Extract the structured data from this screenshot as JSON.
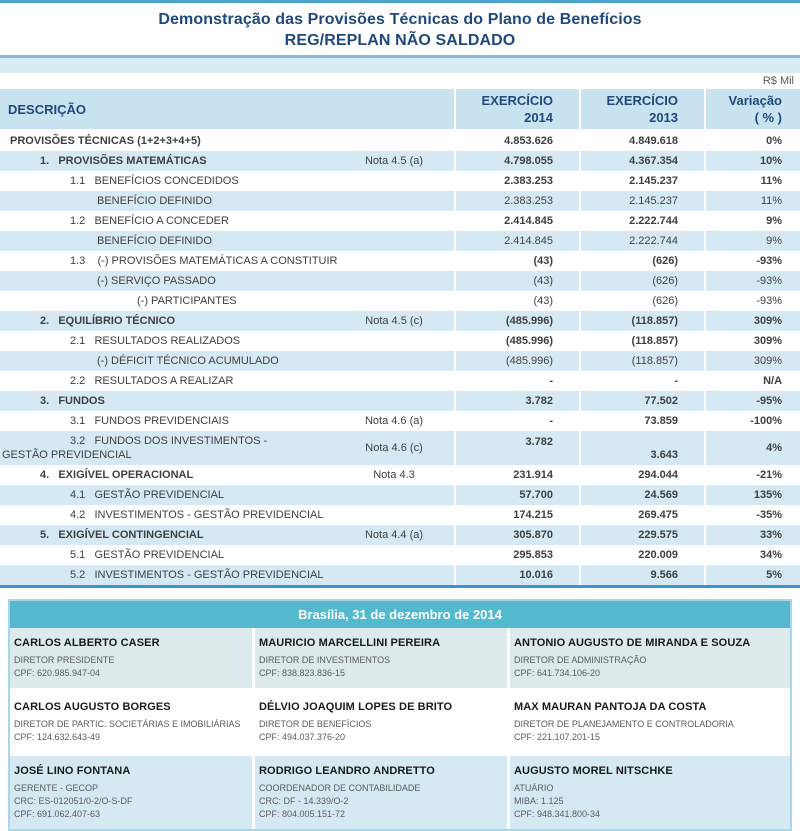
{
  "title": {
    "line1": "Demonstração das Provisões Técnicas do Plano de Benefícios",
    "line2": "REG/REPLAN NÃO SALDADO"
  },
  "meta": {
    "unit": "R$ Mil"
  },
  "table": {
    "headers": {
      "desc": "DESCRIÇÃO",
      "y2014": "EXERCÍCIO\n2014",
      "y2013": "EXERCÍCIO\n2013",
      "variacao": "Variação\n( % )"
    },
    "rows": [
      {
        "label": "PROVISÕES TÉCNICAS (1+2+3+4+5)",
        "indent": 0,
        "nota": "",
        "v2014": "4.853.626",
        "v2013": "4.849.618",
        "variacao": "0%",
        "bold_label": true,
        "bold_values": true,
        "wrap": false
      },
      {
        "label": "1.   PROVISÕES MATEMÁTICAS",
        "indent": 1,
        "nota": "Nota 4.5 (a)",
        "v2014": "4.798.055",
        "v2013": "4.367.354",
        "variacao": "10%",
        "bold_label": true,
        "bold_values": true,
        "wrap": false
      },
      {
        "label": "1.1   BENEFÍCIOS CONCEDIDOS",
        "indent": 2,
        "nota": "",
        "v2014": "2.383.253",
        "v2013": "2.145.237",
        "variacao": "11%",
        "bold_label": false,
        "bold_values": true,
        "wrap": false
      },
      {
        "label": "BENEFÍCIO DEFINIDO",
        "indent": 3,
        "nota": "",
        "v2014": "2.383.253",
        "v2013": "2.145.237",
        "variacao": "11%",
        "bold_label": false,
        "bold_values": false,
        "wrap": false
      },
      {
        "label": "1.2   BENEFÍCIO A CONCEDER",
        "indent": 2,
        "nota": "",
        "v2014": "2.414.845",
        "v2013": "2.222.744",
        "variacao": "9%",
        "bold_label": false,
        "bold_values": true,
        "wrap": false
      },
      {
        "label": "BENEFÍCIO DEFINIDO",
        "indent": 3,
        "nota": "",
        "v2014": "2.414.845",
        "v2013": "2.222.744",
        "variacao": "9%",
        "bold_label": false,
        "bold_values": false,
        "wrap": false
      },
      {
        "label": "1.3    (-) PROVISÕES MATEMÁTICAS A CONSTITUIR",
        "indent": 2,
        "nota": "",
        "v2014": "(43)",
        "v2013": "(626)",
        "variacao": "-93%",
        "bold_label": false,
        "bold_values": true,
        "wrap": false
      },
      {
        "label": "(-) SERVIÇO PASSADO",
        "indent": 3,
        "nota": "",
        "v2014": "(43)",
        "v2013": "(626)",
        "variacao": "-93%",
        "bold_label": false,
        "bold_values": false,
        "wrap": false
      },
      {
        "label": "(-) PARTICIPANTES",
        "indent": 4,
        "nota": "",
        "v2014": "(43)",
        "v2013": "(626)",
        "variacao": "-93%",
        "bold_label": false,
        "bold_values": false,
        "wrap": false
      },
      {
        "label": "2.   EQUILÍBRIO TÉCNICO",
        "indent": 1,
        "nota": "Nota 4.5 (c)",
        "v2014": "(485.996)",
        "v2013": "(118.857)",
        "variacao": "309%",
        "bold_label": true,
        "bold_values": true,
        "wrap": false
      },
      {
        "label": "2.1   RESULTADOS REALIZADOS",
        "indent": 2,
        "nota": "",
        "v2014": "(485.996)",
        "v2013": "(118.857)",
        "variacao": "309%",
        "bold_label": false,
        "bold_values": true,
        "wrap": false
      },
      {
        "label": "(-) DÉFICIT TÉCNICO ACUMULADO",
        "indent": 3,
        "nota": "",
        "v2014": "(485.996)",
        "v2013": "(118.857)",
        "variacao": "309%",
        "bold_label": false,
        "bold_values": false,
        "wrap": false
      },
      {
        "label": "2.2   RESULTADOS A REALIZAR",
        "indent": 2,
        "nota": "",
        "v2014": "-",
        "v2013": "-",
        "variacao": "N/A",
        "bold_label": false,
        "bold_values": true,
        "wrap": false
      },
      {
        "label": "3.   FUNDOS",
        "indent": 1,
        "nota": "",
        "v2014": "3.782",
        "v2013": "77.502",
        "variacao": "-95%",
        "bold_label": true,
        "bold_values": true,
        "wrap": false
      },
      {
        "label": "3.1   FUNDOS PREVIDENCIAIS",
        "indent": 2,
        "nota": "Nota 4.6 (a)",
        "v2014": "-",
        "v2013": "73.859",
        "variacao": "-100%",
        "bold_label": false,
        "bold_values": true,
        "wrap": false
      },
      {
        "label": "3.2   FUNDOS DOS INVESTIMENTOS -\nGESTÃO PREVIDENCIAL",
        "indent": 2,
        "nota": "Nota 4.6 (c)",
        "v2014": "3.782",
        "v2013": "3.643",
        "variacao": "4%",
        "bold_label": false,
        "bold_values": true,
        "wrap": true
      },
      {
        "label": "4.   EXIGÍVEL OPERACIONAL",
        "indent": 1,
        "nota": "Nota 4.3",
        "v2014": "231.914",
        "v2013": "294.044",
        "variacao": "-21%",
        "bold_label": true,
        "bold_values": true,
        "wrap": false
      },
      {
        "label": "4.1   GESTÃO PREVIDENCIAL",
        "indent": 2,
        "nota": "",
        "v2014": "57.700",
        "v2013": "24.569",
        "variacao": "135%",
        "bold_label": false,
        "bold_values": true,
        "wrap": false
      },
      {
        "label": "4.2   INVESTIMENTOS - GESTÃO PREVIDENCIAL",
        "indent": 2,
        "nota": "",
        "v2014": "174.215",
        "v2013": "269.475",
        "variacao": "-35%",
        "bold_label": false,
        "bold_values": true,
        "wrap": false
      },
      {
        "label": "5.   EXIGÍVEL CONTINGENCIAL",
        "indent": 1,
        "nota": "Nota 4.4 (a)",
        "v2014": "305.870",
        "v2013": "229.575",
        "variacao": "33%",
        "bold_label": true,
        "bold_values": true,
        "wrap": false
      },
      {
        "label": "5.1   GESTÃO PREVIDENCIAL",
        "indent": 2,
        "nota": "",
        "v2014": "295.853",
        "v2013": "220.009",
        "variacao": "34%",
        "bold_label": false,
        "bold_values": true,
        "wrap": false
      },
      {
        "label": "5.2   INVESTIMENTOS - GESTÃO PREVIDENCIAL",
        "indent": 2,
        "nota": "",
        "v2014": "10.016",
        "v2013": "9.566",
        "variacao": "5%",
        "bold_label": false,
        "bold_values": true,
        "wrap": false
      }
    ]
  },
  "footer": {
    "date_bar": "Brasília, 31 de dezembro de 2014",
    "rows": [
      [
        {
          "name": "CARLOS ALBERTO CASER",
          "lines": [
            "DIRETOR PRESIDENTE",
            "CPF: 620.985.947-04"
          ]
        },
        {
          "name": "MAURICIO MARCELLINI PEREIRA",
          "lines": [
            "DIRETOR DE INVESTIMENTOS",
            "CPF: 838.823.836-15"
          ]
        },
        {
          "name": "ANTONIO AUGUSTO DE MIRANDA E SOUZA",
          "lines": [
            "DIRETOR DE ADMINISTRAÇÃO",
            "CPF: 641.734.106-20"
          ]
        }
      ],
      [
        {
          "name": "CARLOS AUGUSTO BORGES",
          "lines": [
            "DIRETOR DE PARTIC. SOCIETÁRIAS E IMOBILIÁRIAS",
            "CPF: 124.632.643-49"
          ]
        },
        {
          "name": "DÉLVIO JOAQUIM LOPES DE BRITO",
          "lines": [
            "DIRETOR DE BENEFÍCIOS",
            "CPF: 494.037.376-20"
          ]
        },
        {
          "name": "MAX MAURAN PANTOJA DA COSTA",
          "lines": [
            "DIRETOR DE PLANEJAMENTO E CONTROLADORIA",
            "CPF: 221.107.201-15"
          ]
        }
      ],
      [
        {
          "name": "JOSÉ LINO FONTANA",
          "lines": [
            "GERENTE -  GECOP",
            "CRC: ES-012051/0-2/O-S-DF",
            "CPF: 691.062.407-63"
          ]
        },
        {
          "name": "RODRIGO LEANDRO ANDRETTO",
          "lines": [
            "COORDENADOR DE CONTABILIDADE",
            "CRC: DF - 14.339/O-2",
            "CPF: 804.005.151-72"
          ]
        },
        {
          "name": "AUGUSTO MOREL NITSCHKE",
          "lines": [
            "ATUÁRIO",
            "MIBA: 1.125",
            "CPF: 948.341.800-34"
          ]
        }
      ]
    ]
  },
  "colors": {
    "navy": "#1F497D",
    "teal": "#52B9CE",
    "rowblue": "#D5E9F4",
    "headerblue": "#C9E2F0",
    "topline": "#4DA2CC",
    "bottomline": "#4193C6"
  }
}
